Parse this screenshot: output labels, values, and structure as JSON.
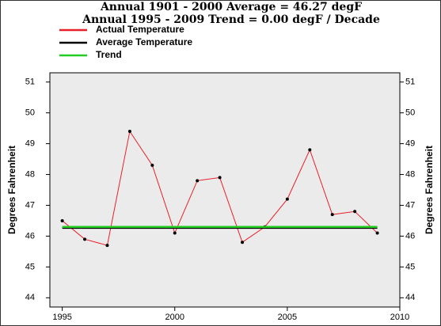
{
  "chart_data": {
    "type": "line",
    "title": "Annual 1901 - 2000 Average = 46.27 degF",
    "subtitle": "Annual 1995 - 2009 Trend = 0.00 degF / Decade",
    "y_label": "Degrees Fahrenheit",
    "x": [
      1995,
      1996,
      1997,
      1998,
      1999,
      2000,
      2001,
      2002,
      2003,
      2004,
      2005,
      2006,
      2007,
      2008,
      2009
    ],
    "series": [
      {
        "name": "Actual Temperature",
        "color": "#e8202a",
        "markers": true,
        "values": [
          46.5,
          45.9,
          45.7,
          49.4,
          48.3,
          46.1,
          47.8,
          47.9,
          45.8,
          46.3,
          47.2,
          48.8,
          46.7,
          46.8,
          46.1
        ]
      },
      {
        "name": "Average Temperature",
        "color": "#000000",
        "markers": false,
        "values": [
          46.27,
          46.27,
          46.27,
          46.27,
          46.27,
          46.27,
          46.27,
          46.27,
          46.27,
          46.27,
          46.27,
          46.27,
          46.27,
          46.27,
          46.27
        ]
      },
      {
        "name": "Trend",
        "color": "#22cc22",
        "markers": false,
        "values": [
          46.3,
          46.3,
          46.3,
          46.3,
          46.3,
          46.3,
          46.3,
          46.3,
          46.3,
          46.3,
          46.3,
          46.3,
          46.3,
          46.3,
          46.3
        ]
      }
    ],
    "xlim": [
      1994.45,
      2010
    ],
    "xticks": [
      1995,
      2000,
      2005,
      2010
    ],
    "ylim": [
      43.7,
      51.3
    ],
    "yticks": [
      44,
      45,
      46,
      47,
      48,
      49,
      50,
      51
    ],
    "legend": "upper left"
  }
}
